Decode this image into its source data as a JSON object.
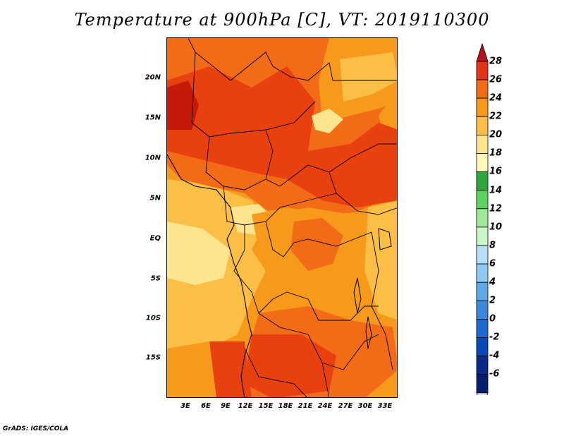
{
  "title": "Temperature at 900hPa [C], VT: 2019110300",
  "footer": "GrADS: IGES/COLA",
  "map": {
    "lat_labels": [
      "20N",
      "15N",
      "10N",
      "5N",
      "EQ",
      "5S",
      "10S",
      "15S"
    ],
    "lon_labels": [
      "3E",
      "6E",
      "9E",
      "12E",
      "15E",
      "18E",
      "21E",
      "24E",
      "27E",
      "30E",
      "33E"
    ],
    "field_colors": {
      "c28": "#c51a0a",
      "c26": "#e8400f",
      "c24": "#f26b16",
      "c22": "#f79a1c",
      "c20": "#fbbf45",
      "c18": "#fde58f",
      "c16": "#fff7c0"
    }
  },
  "colorbar": {
    "levels": [
      "28",
      "26",
      "24",
      "22",
      "20",
      "18",
      "16",
      "14",
      "12",
      "10",
      "8",
      "6",
      "4",
      "2",
      "0",
      "-2",
      "-4",
      "-6"
    ],
    "colors": [
      "#b5121b",
      "#e2341b",
      "#f26b16",
      "#f79a1c",
      "#fbbf45",
      "#fde58f",
      "#fff7b8",
      "#2ca83a",
      "#5fd160",
      "#9ee89a",
      "#cbf4c8",
      "#b7def5",
      "#8fc9f0",
      "#5ea8e6",
      "#3a87db",
      "#1e6ad0",
      "#0d48b8",
      "#0a2a8a",
      "#061e6b"
    ],
    "end_low_color": "#dcdcf2"
  }
}
